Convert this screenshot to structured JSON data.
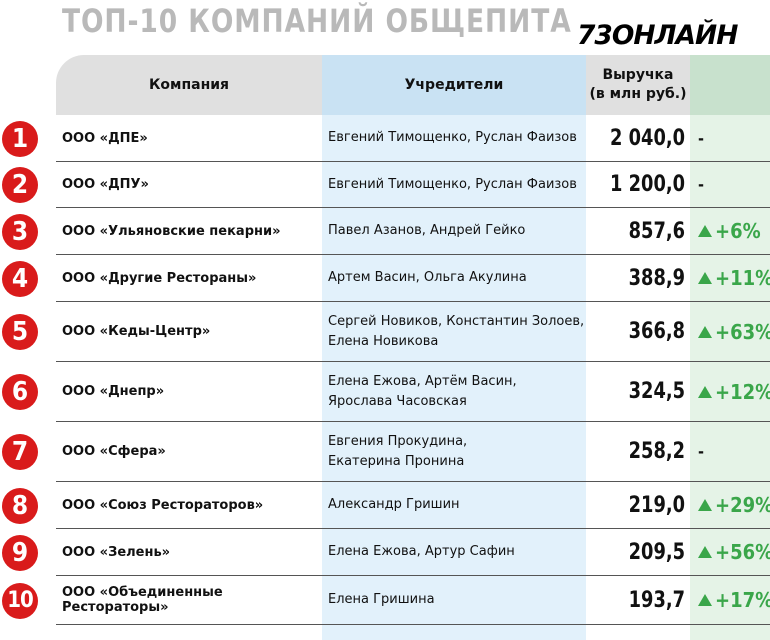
{
  "title": "ТОП-10 КОМПАНИЙ ОБЩЕПИТА",
  "logo": "73ОНЛАЙН",
  "colors": {
    "badge": "#d91b1b",
    "growth": "#3aa64a",
    "founders_bg": "#e2f1fb",
    "change_bg": "#e5f3e7"
  },
  "header": {
    "company": "Компания",
    "founders": "Учредители",
    "revenue_line1": "Выручка",
    "revenue_line2": "(в млн руб.)",
    "change": ""
  },
  "rows": [
    {
      "rank": "1",
      "company": "ООО «ДПЕ»",
      "founders_line1": "Евгений Тимощенко, Руслан Фаизов",
      "founders_line2": "",
      "revenue": "2 040,0",
      "change": "-"
    },
    {
      "rank": "2",
      "company": "ООО «ДПУ»",
      "founders_line1": "Евгений Тимощенко, Руслан Фаизов",
      "founders_line2": "",
      "revenue": "1 200,0",
      "change": "-"
    },
    {
      "rank": "3",
      "company": "ООО «Ульяновские пекарни»",
      "founders_line1": "Павел Азанов, Андрей Гейко",
      "founders_line2": "",
      "revenue": "857,6",
      "change": "+6%"
    },
    {
      "rank": "4",
      "company": "ООО «Другие Рестораны»",
      "founders_line1": "Артем Васин, Ольга Акулина",
      "founders_line2": "",
      "revenue": "388,9",
      "change": "+11%"
    },
    {
      "rank": "5",
      "company": "ООО «Кеды-Центр»",
      "founders_line1": "Сергей Новиков, Константин Золоев,",
      "founders_line2": "Елена Новикова",
      "revenue": "366,8",
      "change": "+63%"
    },
    {
      "rank": "6",
      "company": "ООО «Днепр»",
      "founders_line1": "Елена Ежова, Артём Васин,",
      "founders_line2": "Ярослава Часовская",
      "revenue": "324,5",
      "change": "+12%"
    },
    {
      "rank": "7",
      "company": "ООО «Сфера»",
      "founders_line1": "Евгения Прокудина,",
      "founders_line2": "Екатерина Пронина",
      "revenue": "258,2",
      "change": "-"
    },
    {
      "rank": "8",
      "company": "ООО «Союз Рестораторов»",
      "founders_line1": "Александр Гришин",
      "founders_line2": "",
      "revenue": "219,0",
      "change": "+29%"
    },
    {
      "rank": "9",
      "company": "ООО «Зелень»",
      "founders_line1": "Елена Ежова, Артур Сафин",
      "founders_line2": "",
      "revenue": "209,5",
      "change": "+56%"
    },
    {
      "rank": "10",
      "company": "ООО «Объединенные Рестораторы»",
      "founders_line1": "Елена Гришина",
      "founders_line2": "",
      "revenue": "193,7",
      "change": "+17%"
    }
  ]
}
